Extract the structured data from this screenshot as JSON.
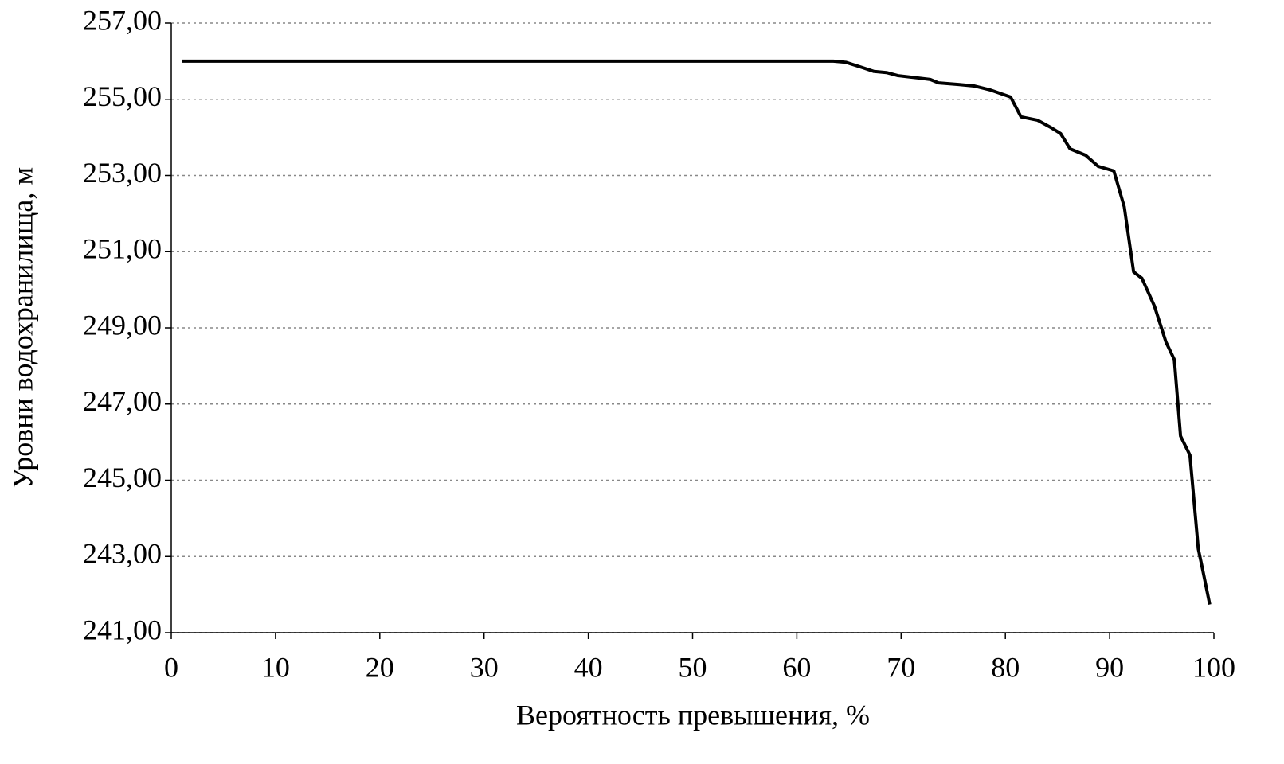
{
  "chart_data": {
    "type": "line",
    "x_label": "Вероятность превышения, %",
    "y_label": "Уровни водохранилища, м",
    "x": [
      1,
      10,
      20,
      30,
      40,
      50,
      60,
      63.5,
      64.7,
      66.3,
      67.4,
      68.6,
      69.7,
      71.6,
      72.8,
      73.6,
      75.5,
      77.0,
      78.5,
      80.5,
      81.5,
      83.1,
      84.3,
      85.3,
      86.2,
      87.7,
      88.9,
      90.4,
      91.4,
      92.3,
      93.1,
      94.3,
      95.4,
      96.2,
      96.8,
      97.7,
      98.5,
      98.9,
      99.6
    ],
    "series": [
      {
        "color": "#000000",
        "values": [
          256.0,
          256.0,
          256.0,
          256.0,
          256.0,
          256.0,
          256.0,
          256.0,
          255.97,
          255.83,
          255.73,
          255.7,
          255.62,
          255.56,
          255.52,
          255.43,
          255.39,
          255.35,
          255.25,
          255.06,
          254.54,
          254.45,
          254.27,
          254.1,
          253.7,
          253.53,
          253.24,
          253.12,
          252.18,
          250.47,
          250.3,
          249.57,
          248.63,
          248.17,
          246.16,
          245.66,
          243.2,
          242.68,
          241.74
        ]
      }
    ],
    "xlim": [
      0,
      100
    ],
    "xticks": [
      0,
      10,
      20,
      30,
      40,
      50,
      60,
      70,
      80,
      90,
      100
    ],
    "ylim": [
      241,
      257
    ],
    "yticks": [
      {
        "value": 241,
        "label": "241,00"
      },
      {
        "value": 243,
        "label": "243,00"
      },
      {
        "value": 245,
        "label": "245,00"
      },
      {
        "value": 247,
        "label": "247,00"
      },
      {
        "value": 249,
        "label": "249,00"
      },
      {
        "value": 251,
        "label": "251,00"
      },
      {
        "value": 253,
        "label": "253,00"
      },
      {
        "value": 255,
        "label": "255,00"
      },
      {
        "value": 257,
        "label": "257,00"
      }
    ],
    "grid": true
  }
}
